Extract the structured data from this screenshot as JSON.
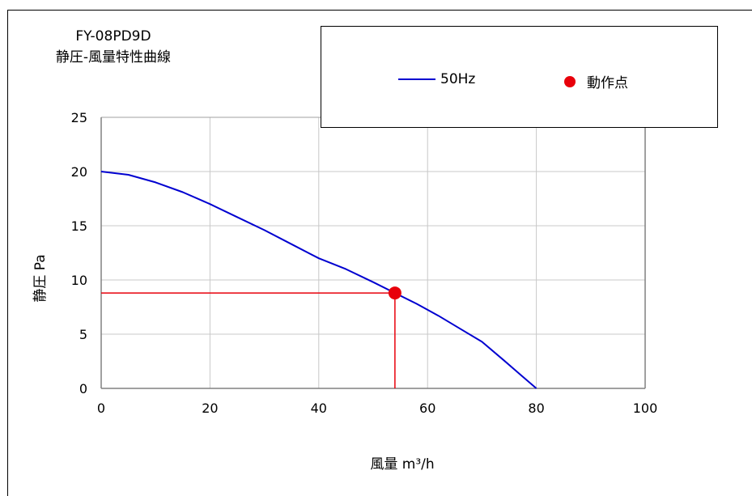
{
  "title": "FY-08PD9D",
  "subtitle": "静圧-風量特性曲線",
  "chart_data": {
    "type": "line",
    "title": "FY-08PD9D",
    "subtitle": "静圧-風量特性曲線",
    "xlabel": "風量 m³/h",
    "ylabel": "静圧 Pa",
    "xlim": [
      0,
      100
    ],
    "ylim": [
      0,
      25
    ],
    "xticks": [
      0,
      20,
      40,
      60,
      80,
      100
    ],
    "yticks": [
      0,
      5,
      10,
      15,
      20,
      25
    ],
    "grid": true,
    "legend_position": "top-right",
    "series": [
      {
        "name": "50Hz",
        "color": "#0000d0",
        "x": [
          0,
          5,
          10,
          15,
          20,
          25,
          30,
          35,
          40,
          45,
          50,
          54,
          58,
          62,
          66,
          70,
          74,
          77,
          80
        ],
        "y": [
          20,
          19.7,
          19.0,
          18.1,
          17.0,
          15.8,
          14.6,
          13.3,
          12.0,
          11.0,
          9.8,
          8.8,
          7.8,
          6.7,
          5.5,
          4.3,
          2.6,
          1.3,
          0
        ]
      }
    ],
    "operating_point": {
      "name": "動作点",
      "color": "#e8000b",
      "x": 54,
      "y": 8.8
    }
  }
}
